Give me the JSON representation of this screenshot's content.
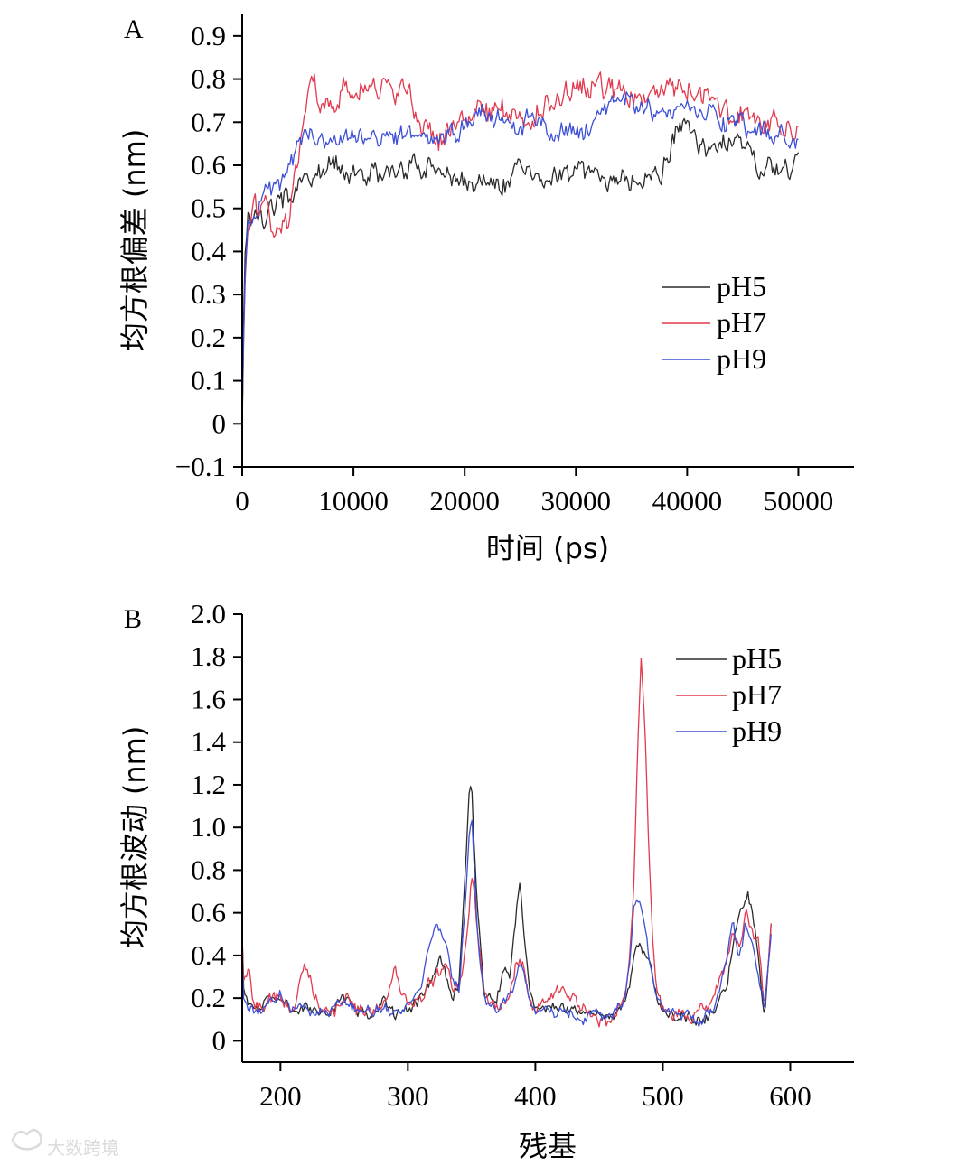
{
  "colors": {
    "pH5": "#2b2b2b",
    "pH7": "#e23a4e",
    "pH9": "#3d4fd6",
    "axis": "#000000"
  },
  "watermark": "大数跨境",
  "chart_data": [
    {
      "panel": "A",
      "type": "line",
      "xlabel": "时间 (ps)",
      "ylabel": "均方根偏差 (nm)",
      "xlim": [
        0,
        55000
      ],
      "ylim": [
        -0.1,
        0.95
      ],
      "xticks": [
        0,
        10000,
        20000,
        30000,
        40000,
        50000
      ],
      "xtick_labels": [
        "0",
        "10000",
        "20000",
        "30000",
        "40000",
        "50000"
      ],
      "yticks": [
        -0.1,
        0,
        0.1,
        0.2,
        0.3,
        0.4,
        0.5,
        0.6,
        0.7,
        0.8,
        0.9
      ],
      "ytick_labels": [
        "−0.1",
        "0",
        "0.1",
        "0.2",
        "0.3",
        "0.4",
        "0.5",
        "0.6",
        "0.7",
        "0.8",
        "0.9"
      ],
      "legend_position": "middle-right",
      "series": [
        {
          "name": "pH5",
          "color": "#2b2b2b",
          "amp": 0.02,
          "x": [
            0,
            200,
            500,
            1000,
            2000,
            3000,
            4000,
            5000,
            6000,
            7000,
            8000,
            9000,
            10000,
            12000,
            14000,
            16000,
            17000,
            18000,
            20000,
            22000,
            24000,
            25000,
            26000,
            28000,
            30000,
            32000,
            34000,
            36000,
            37000,
            38000,
            39000,
            40000,
            41000,
            42000,
            43000,
            44000,
            45000,
            46000,
            48000,
            49000,
            50000
          ],
          "y": [
            0.0,
            0.38,
            0.46,
            0.49,
            0.48,
            0.51,
            0.53,
            0.54,
            0.56,
            0.6,
            0.62,
            0.59,
            0.58,
            0.58,
            0.59,
            0.6,
            0.6,
            0.57,
            0.56,
            0.56,
            0.57,
            0.6,
            0.57,
            0.57,
            0.57,
            0.58,
            0.57,
            0.57,
            0.58,
            0.6,
            0.68,
            0.7,
            0.65,
            0.62,
            0.64,
            0.66,
            0.63,
            0.6,
            0.59,
            0.58,
            0.63
          ]
        },
        {
          "name": "pH7",
          "color": "#e23a4e",
          "amp": 0.022,
          "x": [
            0,
            200,
            500,
            1000,
            2000,
            3000,
            4000,
            5000,
            6000,
            6500,
            7000,
            8000,
            9000,
            10000,
            11000,
            12000,
            14000,
            15000,
            16000,
            17000,
            18000,
            20000,
            22000,
            24000,
            26000,
            28000,
            30000,
            32000,
            34000,
            36000,
            38000,
            40000,
            42000,
            44000,
            46000,
            48000,
            50000
          ],
          "y": [
            0.0,
            0.3,
            0.45,
            0.5,
            0.5,
            0.43,
            0.46,
            0.6,
            0.76,
            0.82,
            0.73,
            0.75,
            0.78,
            0.76,
            0.78,
            0.77,
            0.78,
            0.77,
            0.68,
            0.67,
            0.66,
            0.7,
            0.72,
            0.73,
            0.71,
            0.75,
            0.78,
            0.78,
            0.77,
            0.75,
            0.79,
            0.78,
            0.76,
            0.72,
            0.71,
            0.7,
            0.69
          ]
        },
        {
          "name": "pH9",
          "color": "#3d4fd6",
          "amp": 0.018,
          "x": [
            0,
            200,
            500,
            1000,
            2000,
            3000,
            4000,
            5000,
            6000,
            7000,
            8000,
            10000,
            12000,
            14000,
            16000,
            18000,
            20000,
            21000,
            22000,
            24000,
            26000,
            28000,
            30000,
            32000,
            34000,
            36000,
            38000,
            40000,
            42000,
            44000,
            46000,
            48000,
            50000
          ],
          "y": [
            0.0,
            0.32,
            0.45,
            0.5,
            0.52,
            0.55,
            0.58,
            0.65,
            0.67,
            0.66,
            0.65,
            0.66,
            0.67,
            0.67,
            0.67,
            0.67,
            0.7,
            0.73,
            0.71,
            0.68,
            0.71,
            0.68,
            0.67,
            0.71,
            0.76,
            0.74,
            0.72,
            0.74,
            0.72,
            0.7,
            0.68,
            0.67,
            0.66
          ]
        }
      ]
    },
    {
      "panel": "B",
      "type": "line",
      "xlabel": "残基",
      "ylabel": "均方根波动 (nm)",
      "xlim": [
        170,
        650
      ],
      "ylim": [
        -0.1,
        2.0
      ],
      "xticks": [
        200,
        300,
        400,
        500,
        600
      ],
      "xtick_labels": [
        "200",
        "300",
        "400",
        "500",
        "600"
      ],
      "yticks": [
        0,
        0.2,
        0.4,
        0.6,
        0.8,
        1.0,
        1.2,
        1.4,
        1.6,
        1.8,
        2.0
      ],
      "ytick_labels": [
        "0",
        "0.2",
        "0.4",
        "0.6",
        "0.8",
        "1.0",
        "1.2",
        "1.4",
        "1.6",
        "1.8",
        "2.0"
      ],
      "legend_position": "top-right",
      "series": [
        {
          "name": "pH5",
          "color": "#2b2b2b",
          "amp": 0.02,
          "x": [
            170,
            171,
            175,
            180,
            190,
            200,
            210,
            220,
            230,
            240,
            250,
            260,
            270,
            280,
            290,
            300,
            310,
            320,
            325,
            330,
            335,
            340,
            345,
            348,
            350,
            352,
            355,
            360,
            370,
            375,
            380,
            385,
            388,
            390,
            395,
            400,
            420,
            440,
            460,
            470,
            475,
            478,
            480,
            483,
            486,
            490,
            495,
            500,
            510,
            520,
            530,
            540,
            550,
            555,
            560,
            565,
            567,
            570,
            575,
            580,
            585
          ],
          "y": [
            0.48,
            0.25,
            0.14,
            0.15,
            0.2,
            0.2,
            0.15,
            0.15,
            0.15,
            0.14,
            0.2,
            0.14,
            0.13,
            0.2,
            0.12,
            0.16,
            0.2,
            0.3,
            0.4,
            0.3,
            0.2,
            0.25,
            0.8,
            1.15,
            1.2,
            0.9,
            0.6,
            0.2,
            0.2,
            0.35,
            0.3,
            0.6,
            0.76,
            0.6,
            0.25,
            0.15,
            0.14,
            0.12,
            0.12,
            0.18,
            0.3,
            0.42,
            0.45,
            0.43,
            0.42,
            0.35,
            0.2,
            0.15,
            0.13,
            0.12,
            0.1,
            0.12,
            0.25,
            0.45,
            0.6,
            0.68,
            0.7,
            0.6,
            0.4,
            0.1,
            0.55
          ]
        },
        {
          "name": "pH7",
          "color": "#e23a4e",
          "amp": 0.025,
          "x": [
            170,
            171,
            175,
            180,
            190,
            200,
            210,
            220,
            230,
            240,
            250,
            260,
            270,
            280,
            290,
            300,
            310,
            320,
            325,
            330,
            335,
            340,
            345,
            348,
            350,
            352,
            355,
            360,
            370,
            380,
            385,
            388,
            390,
            395,
            400,
            420,
            440,
            460,
            470,
            474,
            477,
            480,
            483,
            486,
            489,
            492,
            495,
            500,
            510,
            520,
            530,
            540,
            550,
            555,
            560,
            565,
            570,
            575,
            580,
            585
          ],
          "y": [
            0.5,
            0.28,
            0.35,
            0.15,
            0.18,
            0.22,
            0.15,
            0.32,
            0.15,
            0.12,
            0.22,
            0.14,
            0.13,
            0.15,
            0.32,
            0.18,
            0.2,
            0.3,
            0.3,
            0.35,
            0.25,
            0.25,
            0.4,
            0.6,
            0.8,
            0.7,
            0.5,
            0.22,
            0.15,
            0.2,
            0.35,
            0.4,
            0.35,
            0.2,
            0.15,
            0.25,
            0.12,
            0.1,
            0.2,
            0.4,
            0.7,
            1.3,
            1.82,
            1.5,
            0.9,
            0.5,
            0.25,
            0.15,
            0.13,
            0.12,
            0.14,
            0.2,
            0.35,
            0.5,
            0.45,
            0.6,
            0.5,
            0.45,
            0.15,
            0.55
          ]
        },
        {
          "name": "pH9",
          "color": "#3d4fd6",
          "amp": 0.02,
          "x": [
            170,
            171,
            175,
            180,
            190,
            200,
            210,
            220,
            230,
            240,
            250,
            260,
            270,
            280,
            290,
            300,
            310,
            318,
            322,
            325,
            330,
            335,
            340,
            345,
            348,
            350,
            352,
            355,
            360,
            370,
            380,
            385,
            388,
            392,
            395,
            400,
            420,
            440,
            460,
            470,
            474,
            477,
            480,
            483,
            486,
            490,
            495,
            500,
            510,
            520,
            530,
            540,
            550,
            555,
            560,
            565,
            570,
            575,
            580,
            585
          ],
          "y": [
            0.45,
            0.2,
            0.15,
            0.14,
            0.18,
            0.22,
            0.15,
            0.15,
            0.14,
            0.13,
            0.18,
            0.13,
            0.13,
            0.16,
            0.14,
            0.18,
            0.25,
            0.48,
            0.55,
            0.5,
            0.45,
            0.3,
            0.25,
            0.6,
            0.95,
            1.05,
            0.8,
            0.45,
            0.2,
            0.15,
            0.2,
            0.3,
            0.38,
            0.3,
            0.2,
            0.14,
            0.13,
            0.12,
            0.12,
            0.2,
            0.35,
            0.6,
            0.7,
            0.62,
            0.55,
            0.35,
            0.2,
            0.13,
            0.12,
            0.12,
            0.1,
            0.15,
            0.4,
            0.55,
            0.4,
            0.55,
            0.45,
            0.3,
            0.15,
            0.5
          ]
        }
      ]
    }
  ]
}
